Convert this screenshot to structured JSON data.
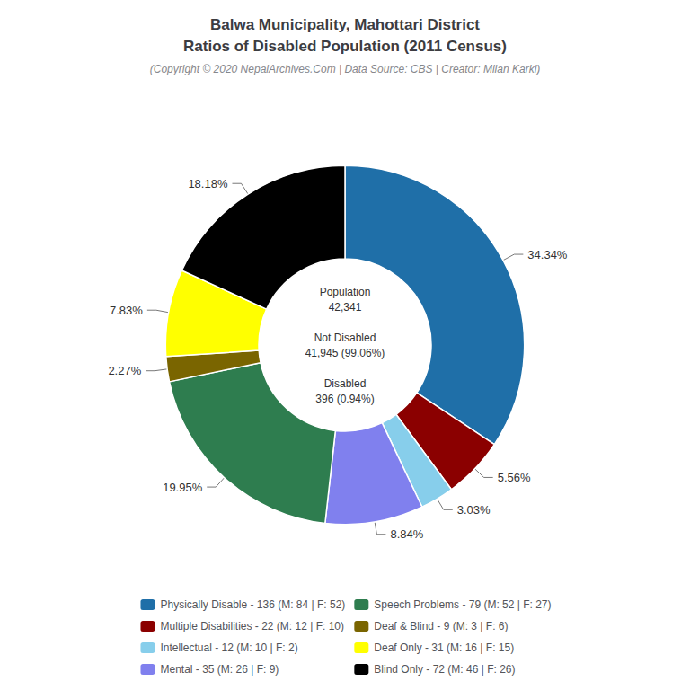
{
  "chart_data": {
    "type": "pie",
    "title": "Balwa Municipality, Mahottari District\nRatios of Disabled Population (2011 Census)",
    "subtitle": "(Copyright © 2020 NepalArchives.Com | Data Source: CBS | Creator: Milan Karki)",
    "categories": [
      "Physically Disable - 136 (M: 84 | F: 52)",
      "Multiple Disabilities - 22 (M: 12 | F: 10)",
      "Intellectual - 12 (M: 10 | F: 2)",
      "Mental - 35 (M: 26 | F: 9)",
      "Speech Problems - 79 (M: 52 | F: 27)",
      "Deaf & Blind - 9 (M: 3 | F: 6)",
      "Deaf Only - 31 (M: 16 | F: 15)",
      "Blind Only - 72 (M: 46 | F: 26)"
    ],
    "values": [
      34.34,
      5.56,
      3.03,
      8.84,
      19.95,
      2.27,
      7.83,
      18.18
    ],
    "value_labels": [
      "34.34%",
      "5.56%",
      "3.03%",
      "8.84%",
      "19.95%",
      "2.27%",
      "7.83%",
      "18.18%"
    ],
    "colors": [
      "#1f6fa8",
      "#8b0000",
      "#87ceeb",
      "#8080ee",
      "#2e7d4f",
      "#7a6500",
      "#ffff00",
      "#000000"
    ],
    "annotations": [
      "Population",
      "42,341",
      "Not Disabled",
      "41,945 (99.06%)",
      "Disabled",
      "396 (0.94%)"
    ],
    "legend": "bottom",
    "data_labels": true
  }
}
